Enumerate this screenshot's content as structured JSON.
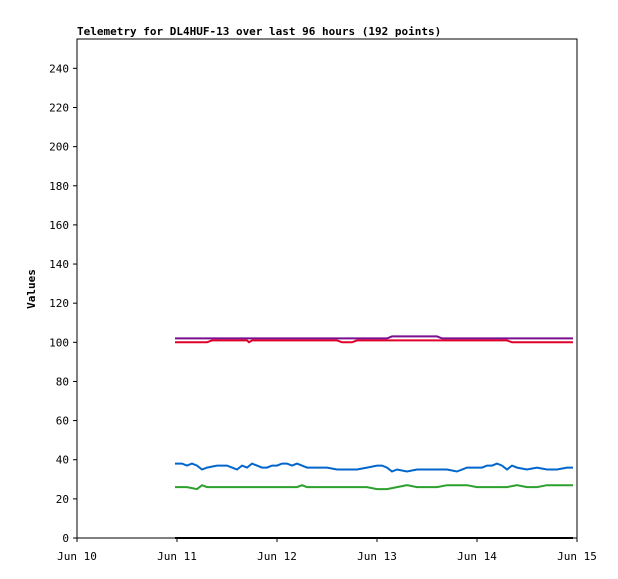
{
  "chart_data": {
    "type": "line",
    "title": "Telemetry for DL4HUF-13 over last 96 hours (192 points)",
    "ylabel": "Values",
    "xlabel": "",
    "ylim": [
      0,
      255
    ],
    "yticks": [
      0,
      20,
      40,
      60,
      80,
      100,
      120,
      140,
      160,
      180,
      200,
      220,
      240
    ],
    "xlim": [
      "Jun 10",
      "Jun 15"
    ],
    "xticks": [
      "Jun 10",
      "Jun 11",
      "Jun 12",
      "Jun 13",
      "Jun 14",
      "Jun 15"
    ],
    "grid": false,
    "series": [
      {
        "color": "#7a0f8f",
        "x": [
          0.98,
          1.3,
          1.6,
          2.0,
          2.4,
          2.8,
          3.1,
          3.15,
          3.6,
          3.65,
          4.0,
          4.4,
          4.96
        ],
        "values": [
          102,
          102,
          102,
          102,
          102,
          102,
          102,
          103,
          103,
          102,
          102,
          102,
          102
        ]
      },
      {
        "color": "#e0002a",
        "x": [
          0.98,
          1.1,
          1.2,
          1.3,
          1.35,
          1.5,
          1.7,
          1.72,
          1.75,
          2.0,
          2.3,
          2.6,
          2.65,
          2.75,
          2.8,
          3.0,
          3.2,
          3.5,
          3.8,
          4.1,
          4.3,
          4.35,
          4.6,
          4.96
        ],
        "values": [
          100,
          100,
          100,
          100,
          101,
          101,
          101,
          100,
          101,
          101,
          101,
          101,
          100,
          100,
          101,
          101,
          101,
          101,
          101,
          101,
          101,
          100,
          100,
          100
        ]
      },
      {
        "color": "#0066cc",
        "x": [
          0.98,
          1.05,
          1.1,
          1.15,
          1.2,
          1.25,
          1.3,
          1.4,
          1.5,
          1.55,
          1.6,
          1.65,
          1.7,
          1.75,
          1.8,
          1.85,
          1.9,
          1.95,
          2.0,
          2.05,
          2.1,
          2.15,
          2.2,
          2.3,
          2.4,
          2.5,
          2.6,
          2.7,
          2.8,
          2.9,
          3.0,
          3.05,
          3.1,
          3.15,
          3.2,
          3.3,
          3.4,
          3.5,
          3.6,
          3.7,
          3.8,
          3.9,
          4.0,
          4.05,
          4.1,
          4.15,
          4.2,
          4.25,
          4.3,
          4.35,
          4.4,
          4.5,
          4.6,
          4.7,
          4.8,
          4.9,
          4.96
        ],
        "values": [
          38,
          38,
          37,
          38,
          37,
          35,
          36,
          37,
          37,
          36,
          35,
          37,
          36,
          38,
          37,
          36,
          36,
          37,
          37,
          38,
          38,
          37,
          38,
          36,
          36,
          36,
          35,
          35,
          35,
          36,
          37,
          37,
          36,
          34,
          35,
          34,
          35,
          35,
          35,
          35,
          34,
          36,
          36,
          36,
          37,
          37,
          38,
          37,
          35,
          37,
          36,
          35,
          36,
          35,
          35,
          36,
          36
        ]
      },
      {
        "color": "#2ca02c",
        "x": [
          0.98,
          1.1,
          1.2,
          1.25,
          1.3,
          1.4,
          1.5,
          1.6,
          1.7,
          1.8,
          1.9,
          2.0,
          2.1,
          2.2,
          2.25,
          2.3,
          2.4,
          2.5,
          2.6,
          2.7,
          2.8,
          2.9,
          3.0,
          3.1,
          3.2,
          3.3,
          3.4,
          3.5,
          3.6,
          3.7,
          3.8,
          3.9,
          4.0,
          4.1,
          4.2,
          4.3,
          4.4,
          4.5,
          4.6,
          4.7,
          4.8,
          4.96
        ],
        "values": [
          26,
          26,
          25,
          27,
          26,
          26,
          26,
          26,
          26,
          26,
          26,
          26,
          26,
          26,
          27,
          26,
          26,
          26,
          26,
          26,
          26,
          26,
          25,
          25,
          26,
          27,
          26,
          26,
          26,
          27,
          27,
          27,
          26,
          26,
          26,
          26,
          27,
          26,
          26,
          27,
          27,
          27
        ]
      },
      {
        "color": "#000000",
        "x": [
          0.98,
          4.96
        ],
        "values": [
          0,
          0
        ]
      }
    ]
  }
}
